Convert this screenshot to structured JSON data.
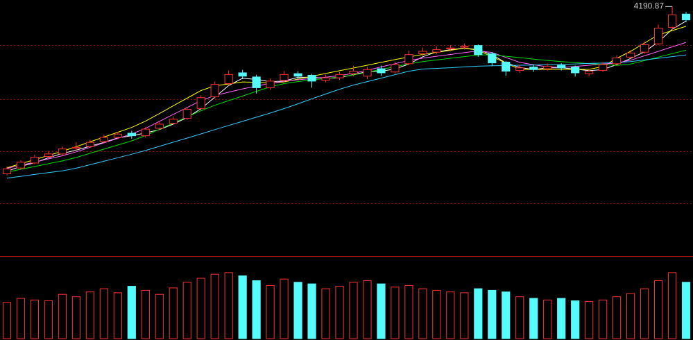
{
  "chart_data": {
    "type": "candlestick",
    "ylim": [
      2700,
      4230
    ],
    "up_color": "#ff3232",
    "down_color": "#54fcfc",
    "open": [
      3180,
      3215,
      3245,
      3285,
      3300,
      3335,
      3345,
      3375,
      3400,
      3425,
      3410,
      3455,
      3485,
      3515,
      3575,
      3645,
      3725,
      3790,
      3765,
      3700,
      3745,
      3785,
      3775,
      3745,
      3760,
      3785,
      3770,
      3815,
      3795,
      3845,
      3905,
      3915,
      3935,
      3945,
      3955,
      3905,
      3855,
      3805,
      3825,
      3815,
      3835,
      3825,
      3785,
      3805,
      3845,
      3885,
      3915,
      3965,
      4065,
      4145
    ],
    "high": [
      3225,
      3262,
      3295,
      3318,
      3345,
      3372,
      3385,
      3416,
      3434,
      3440,
      3462,
      3495,
      3528,
      3584,
      3655,
      3738,
      3805,
      3808,
      3778,
      3756,
      3802,
      3800,
      3784,
      3778,
      3796,
      3832,
      3826,
      3834,
      3856,
      3925,
      3942,
      3950,
      3958,
      3966,
      3962,
      3915,
      3862,
      3838,
      3840,
      3846,
      3848,
      3834,
      3814,
      3852,
      3896,
      3928,
      3980,
      4082,
      4190.87,
      4158
    ],
    "low": [
      3170,
      3205,
      3238,
      3272,
      3290,
      3322,
      3336,
      3365,
      3388,
      3392,
      3398,
      3446,
      3474,
      3506,
      3566,
      3636,
      3712,
      3752,
      3665,
      3688,
      3734,
      3752,
      3700,
      3732,
      3748,
      3770,
      3752,
      3772,
      3784,
      3836,
      3892,
      3904,
      3920,
      3930,
      3886,
      3830,
      3772,
      3790,
      3796,
      3802,
      3804,
      3768,
      3770,
      3796,
      3836,
      3876,
      3905,
      3958,
      4052,
      4096
    ],
    "close": [
      3210,
      3250,
      3280,
      3300,
      3330,
      3340,
      3370,
      3400,
      3420,
      3410,
      3450,
      3480,
      3510,
      3570,
      3640,
      3720,
      3780,
      3770,
      3700,
      3740,
      3780,
      3770,
      3740,
      3760,
      3780,
      3800,
      3810,
      3790,
      3840,
      3900,
      3920,
      3930,
      3940,
      3950,
      3900,
      3850,
      3800,
      3820,
      3810,
      3830,
      3820,
      3790,
      3800,
      3840,
      3880,
      3910,
      3960,
      4060,
      4140,
      4110
    ],
    "moving_averages": [
      {
        "color": "#ffffff",
        "values": [
          3195,
          3225,
          3247,
          3277,
          3303,
          3323,
          3347,
          3370,
          3397,
          3410,
          3427,
          3447,
          3480,
          3520,
          3573,
          3643,
          3713,
          3757,
          3750,
          3737,
          3740,
          3763,
          3763,
          3757,
          3760,
          3780,
          3797,
          3800,
          3813,
          3843,
          3887,
          3917,
          3930,
          3940,
          3930,
          3900,
          3850,
          3823,
          3810,
          3820,
          3820,
          3813,
          3803,
          3810,
          3840,
          3877,
          3917,
          3977,
          4053,
          4103
        ]
      },
      {
        "color": "#ffff00",
        "values": [
          3216,
          3241,
          3266,
          3291,
          3316,
          3344,
          3373,
          3402,
          3431,
          3460,
          3498,
          3544,
          3591,
          3637,
          3683,
          3712,
          3723,
          3735,
          3733,
          3729,
          3735,
          3752,
          3769,
          3786,
          3803,
          3819,
          3836,
          3853,
          3870,
          3886,
          3901,
          3914,
          3926,
          3939,
          3926,
          3888,
          3849,
          3811,
          3811,
          3811,
          3811,
          3811,
          3811,
          3828,
          3878,
          3920,
          3970,
          4020,
          4045,
          4071
        ]
      },
      {
        "color": "#ff66ff",
        "values": [
          3213,
          3232,
          3251,
          3270,
          3289,
          3313,
          3340,
          3367,
          3394,
          3420,
          3455,
          3497,
          3539,
          3580,
          3622,
          3653,
          3673,
          3693,
          3710,
          3727,
          3739,
          3748,
          3756,
          3764,
          3773,
          3787,
          3806,
          3826,
          3845,
          3864,
          3879,
          3890,
          3901,
          3912,
          3923,
          3913,
          3883,
          3853,
          3839,
          3826,
          3822,
          3829,
          3836,
          3843,
          3850,
          3866,
          3893,
          3920,
          3947,
          3974
        ]
      },
      {
        "color": "#00e000",
        "values": [
          3190,
          3207,
          3224,
          3241,
          3258,
          3279,
          3304,
          3329,
          3354,
          3379,
          3411,
          3449,
          3486,
          3524,
          3561,
          3594,
          3622,
          3650,
          3678,
          3705,
          3725,
          3737,
          3748,
          3756,
          3765,
          3777,
          3794,
          3811,
          3827,
          3844,
          3858,
          3868,
          3878,
          3888,
          3898,
          3899,
          3890,
          3882,
          3873,
          3865,
          3858,
          3852,
          3846,
          3841,
          3835,
          3843,
          3864,
          3885,
          3906,
          3927
        ]
      },
      {
        "color": "#33ccff",
        "values": [
          3154,
          3165,
          3176,
          3187,
          3198,
          3214,
          3235,
          3256,
          3277,
          3298,
          3321,
          3346,
          3371,
          3396,
          3421,
          3447,
          3472,
          3497,
          3522,
          3547,
          3574,
          3603,
          3633,
          3662,
          3691,
          3716,
          3737,
          3758,
          3779,
          3800,
          3813,
          3817,
          3821,
          3826,
          3830,
          3833,
          3834,
          3836,
          3837,
          3839,
          3841,
          3844,
          3847,
          3849,
          3852,
          3858,
          3868,
          3878,
          3888,
          3898
        ]
      }
    ],
    "volume": {
      "ylim": [
        0,
        100
      ],
      "values": [
        45,
        50,
        48,
        47,
        55,
        52,
        58,
        62,
        57,
        65,
        60,
        55,
        63,
        70,
        75,
        80,
        82,
        78,
        72,
        66,
        74,
        70,
        68,
        62,
        65,
        70,
        72,
        68,
        64,
        66,
        62,
        60,
        58,
        57,
        62,
        60,
        58,
        52,
        50,
        48,
        50,
        47,
        46,
        48,
        52,
        56,
        62,
        72,
        82,
        70
      ]
    }
  }
}
